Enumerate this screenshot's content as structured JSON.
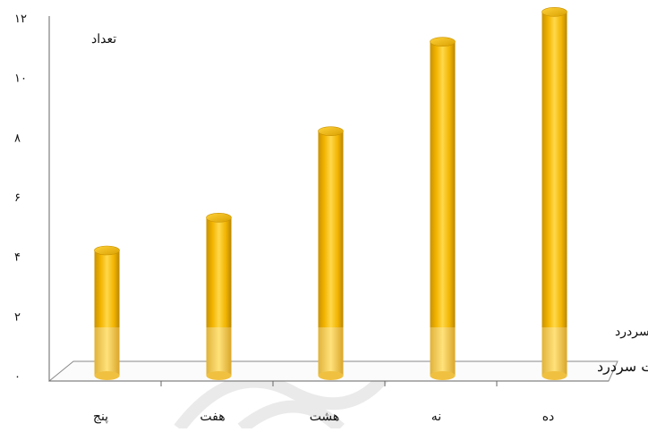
{
  "chart_data": {
    "type": "bar",
    "style": "3d-cylinder",
    "ylabel": "تعداد",
    "xlabel": "شدت سردرد",
    "xlabel_secondary": "شدت سردرد",
    "categories": [
      "پنج",
      "هفت",
      "هشت",
      "نه",
      "ده"
    ],
    "values": [
      4.2,
      5.3,
      8.2,
      11.2,
      12.2
    ],
    "ylim": [
      0,
      12
    ],
    "y_ticks": [
      "۰",
      "۲",
      "۴",
      "۶",
      "۸",
      "۱۰",
      "۱۲"
    ],
    "grid": false,
    "colors": {
      "bar_main": "#f5b800",
      "bar_dark": "#c99200",
      "bar_light": "#ffd84a",
      "bar_top": "#f7c400",
      "floor_edge": "#888888",
      "axis": "#666666"
    }
  }
}
